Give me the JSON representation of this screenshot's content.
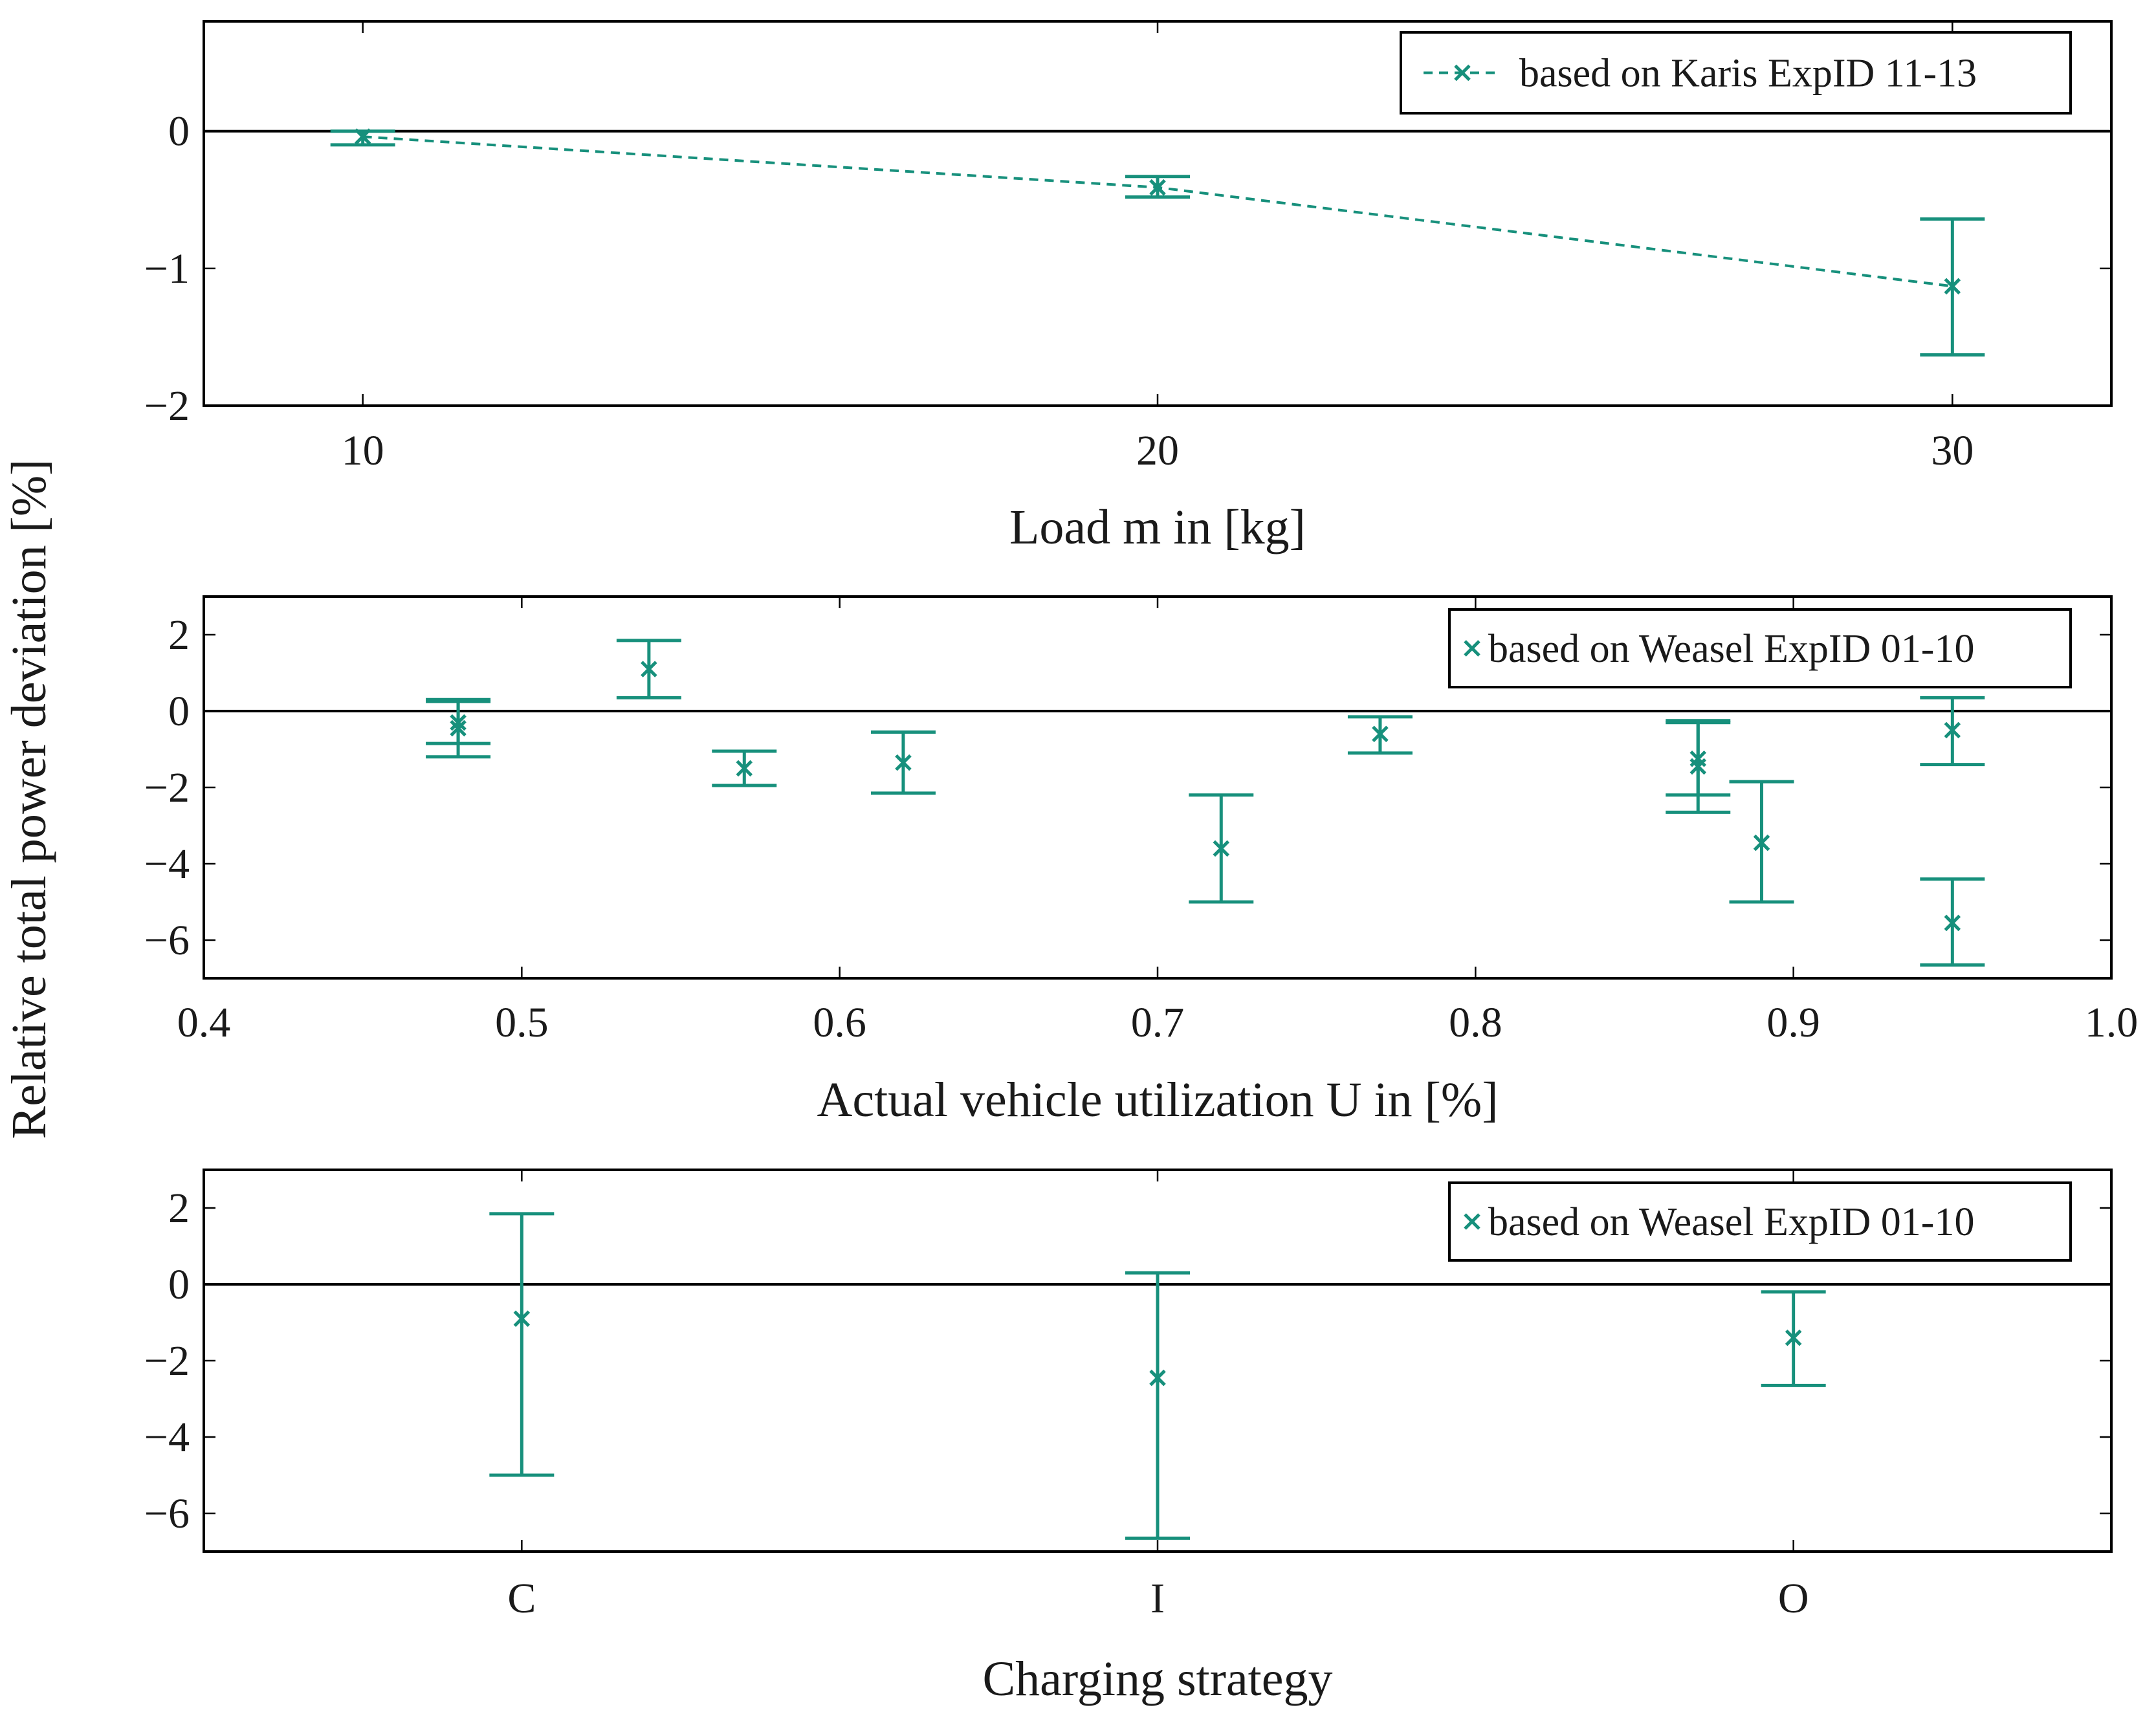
{
  "shared_ylabel": "Relative total power deviation [%]",
  "accent_color": "#17907c",
  "chart_data": [
    {
      "type": "scatter",
      "title": "",
      "xlabel": "Load m in [kg]",
      "ylabel": "Relative total power deviation [%]",
      "xlim": [
        8,
        32
      ],
      "ylim": [
        -2,
        0.8
      ],
      "xticks": [
        10,
        20,
        30
      ],
      "xtick_labels": [
        "10",
        "20",
        "30"
      ],
      "yticks": [
        0,
        -1,
        -2
      ],
      "ytick_labels": [
        "0",
        "−1",
        "−2"
      ],
      "connected": true,
      "series": [
        {
          "name": "based on Karis ExpID 11-13",
          "points": [
            {
              "x": 10,
              "y": -0.04,
              "lo": -0.1,
              "hi": 0.0
            },
            {
              "x": 20,
              "y": -0.41,
              "lo": -0.48,
              "hi": -0.33
            },
            {
              "x": 30,
              "y": -1.13,
              "lo": -1.63,
              "hi": -0.64
            }
          ]
        }
      ]
    },
    {
      "type": "scatter",
      "title": "",
      "xlabel": "Actual vehicle utilization U in [%]",
      "ylabel": "Relative total power deviation [%]",
      "xlim": [
        0.4,
        1.0
      ],
      "ylim": [
        -7,
        3
      ],
      "xticks": [
        0.4,
        0.5,
        0.6,
        0.7,
        0.8,
        0.9,
        1.0
      ],
      "xtick_labels": [
        "0.4",
        "0.5",
        "0.6",
        "0.7",
        "0.8",
        "0.9",
        "1.0"
      ],
      "yticks": [
        2,
        0,
        -2,
        -4,
        -6
      ],
      "ytick_labels": [
        "2",
        "0",
        "−2",
        "−4",
        "−6"
      ],
      "connected": false,
      "series": [
        {
          "name": "based on Weasel ExpID 01-10",
          "points": [
            {
              "x": 0.48,
              "y": -0.3,
              "lo": -0.85,
              "hi": 0.25
            },
            {
              "x": 0.48,
              "y": -0.45,
              "lo": -1.2,
              "hi": 0.3
            },
            {
              "x": 0.54,
              "y": 1.1,
              "lo": 0.35,
              "hi": 1.85
            },
            {
              "x": 0.57,
              "y": -1.5,
              "lo": -1.95,
              "hi": -1.05
            },
            {
              "x": 0.62,
              "y": -1.35,
              "lo": -2.15,
              "hi": -0.55
            },
            {
              "x": 0.72,
              "y": -3.6,
              "lo": -5.0,
              "hi": -2.2
            },
            {
              "x": 0.77,
              "y": -0.6,
              "lo": -1.1,
              "hi": -0.15
            },
            {
              "x": 0.87,
              "y": -1.25,
              "lo": -2.2,
              "hi": -0.3
            },
            {
              "x": 0.87,
              "y": -1.45,
              "lo": -2.65,
              "hi": -0.25
            },
            {
              "x": 0.89,
              "y": -3.45,
              "lo": -5.0,
              "hi": -1.85
            },
            {
              "x": 0.95,
              "y": -0.5,
              "lo": -1.4,
              "hi": 0.35
            },
            {
              "x": 0.95,
              "y": -5.55,
              "lo": -6.65,
              "hi": -4.4
            }
          ]
        }
      ]
    },
    {
      "type": "scatter",
      "title": "",
      "xlabel": "Charging strategy",
      "ylabel": "Relative total power deviation [%]",
      "categories": [
        "C",
        "I",
        "O"
      ],
      "xlim": [
        -0.5,
        2.5
      ],
      "ylim": [
        -7,
        3
      ],
      "xticks": [
        0,
        1,
        2
      ],
      "xtick_labels": [
        "C",
        "I",
        "O"
      ],
      "yticks": [
        2,
        0,
        -2,
        -4,
        -6
      ],
      "ytick_labels": [
        "2",
        "0",
        "−2",
        "−4",
        "−6"
      ],
      "connected": false,
      "series": [
        {
          "name": "based on Weasel ExpID 01-10",
          "points": [
            {
              "x": 0,
              "y": -0.9,
              "lo": -5.0,
              "hi": 1.85
            },
            {
              "x": 1,
              "y": -2.45,
              "lo": -6.65,
              "hi": 0.3
            },
            {
              "x": 2,
              "y": -1.4,
              "lo": -2.65,
              "hi": -0.2
            }
          ]
        }
      ]
    }
  ]
}
